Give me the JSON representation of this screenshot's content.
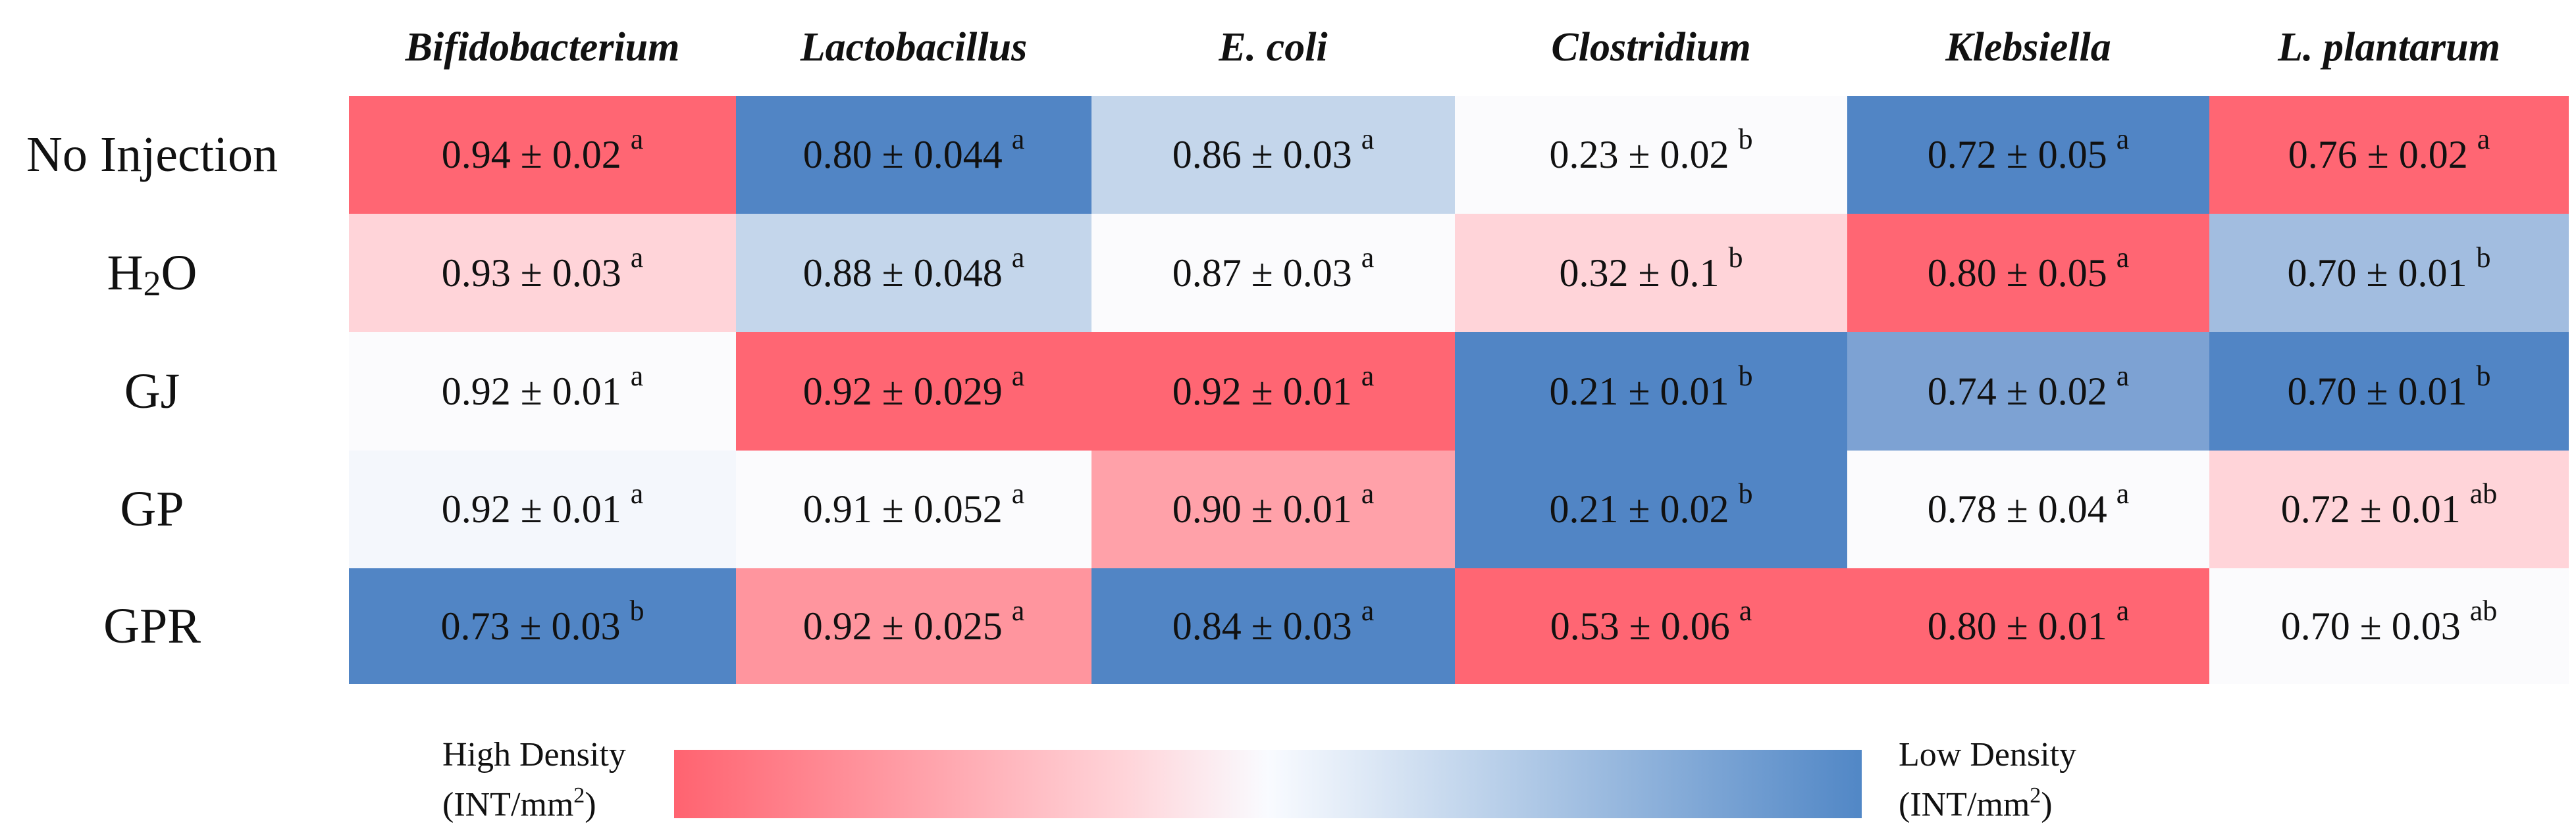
{
  "chart_data": {
    "type": "heatmap",
    "columns": [
      "Bifidobacterium",
      "Lactobacillus",
      "E. coli",
      "Clostridium",
      "Klebsiella",
      "L. plantarum"
    ],
    "rows": [
      {
        "label": "No Injection",
        "label_main": "No Injection",
        "label_sub": "",
        "label_tail": ""
      },
      {
        "label": "H2O",
        "label_main": "H",
        "label_sub": "2",
        "label_tail": "O"
      },
      {
        "label": "GJ",
        "label_main": "GJ",
        "label_sub": "",
        "label_tail": ""
      },
      {
        "label": "GP",
        "label_main": "GP",
        "label_sub": "",
        "label_tail": ""
      },
      {
        "label": "GPR",
        "label_main": "GPR",
        "label_sub": "",
        "label_tail": ""
      }
    ],
    "cells": [
      [
        {
          "text": "0.94 ± 0.02",
          "sig": "a",
          "mean": 0.94,
          "sd": 0.02,
          "color": "#ff6673"
        },
        {
          "text": "0.80 ± 0.044",
          "sig": "a",
          "mean": 0.8,
          "sd": 0.044,
          "color": "#5185c5"
        },
        {
          "text": "0.86 ± 0.03",
          "sig": "a",
          "mean": 0.86,
          "sd": 0.03,
          "color": "#c4d6eb"
        },
        {
          "text": "0.23 ± 0.02",
          "sig": "b",
          "mean": 0.23,
          "sd": 0.02,
          "color": "#fbfbfd"
        },
        {
          "text": "0.72 ± 0.05",
          "sig": "a",
          "mean": 0.72,
          "sd": 0.05,
          "color": "#5185c5"
        },
        {
          "text": "0.76 ± 0.02",
          "sig": "a",
          "mean": 0.76,
          "sd": 0.02,
          "color": "#ff6673"
        }
      ],
      [
        {
          "text": "0.93 ± 0.03",
          "sig": "a",
          "mean": 0.93,
          "sd": 0.03,
          "color": "#ffd4d9"
        },
        {
          "text": "0.88 ± 0.048",
          "sig": "a",
          "mean": 0.88,
          "sd": 0.048,
          "color": "#c4d6eb"
        },
        {
          "text": "0.87 ± 0.03",
          "sig": "a",
          "mean": 0.87,
          "sd": 0.03,
          "color": "#fbfbfd"
        },
        {
          "text": "0.32 ± 0.1",
          "sig": "b",
          "mean": 0.32,
          "sd": 0.1,
          "color": "#ffd4d9"
        },
        {
          "text": "0.80 ± 0.05",
          "sig": "a",
          "mean": 0.8,
          "sd": 0.05,
          "color": "#ff6673"
        },
        {
          "text": "0.70 ± 0.01",
          "sig": "b",
          "mean": 0.7,
          "sd": 0.01,
          "color": "#a2bde0"
        }
      ],
      [
        {
          "text": "0.92 ± 0.01",
          "sig": "a",
          "mean": 0.92,
          "sd": 0.01,
          "color": "#fbfbfd"
        },
        {
          "text": "0.92 ± 0.029",
          "sig": "a",
          "mean": 0.92,
          "sd": 0.029,
          "color": "#ff6673"
        },
        {
          "text": "0.92 ± 0.01",
          "sig": "a",
          "mean": 0.92,
          "sd": 0.01,
          "color": "#ff6673"
        },
        {
          "text": "0.21 ± 0.01",
          "sig": "b",
          "mean": 0.21,
          "sd": 0.01,
          "color": "#5185c5"
        },
        {
          "text": "0.74 ± 0.02",
          "sig": "a",
          "mean": 0.74,
          "sd": 0.02,
          "color": "#7da2d3"
        },
        {
          "text": "0.70 ± 0.01",
          "sig": "b",
          "mean": 0.7,
          "sd": 0.01,
          "color": "#5185c5"
        }
      ],
      [
        {
          "text": "0.92 ± 0.01",
          "sig": "a",
          "mean": 0.92,
          "sd": 0.01,
          "color": "#f4f7fc"
        },
        {
          "text": "0.91 ± 0.052",
          "sig": "a",
          "mean": 0.91,
          "sd": 0.052,
          "color": "#fbfbfd"
        },
        {
          "text": "0.90 ± 0.01",
          "sig": "a",
          "mean": 0.9,
          "sd": 0.01,
          "color": "#ffa1a9"
        },
        {
          "text": "0.21 ± 0.02",
          "sig": "b",
          "mean": 0.21,
          "sd": 0.02,
          "color": "#5185c5"
        },
        {
          "text": "0.78 ± 0.04",
          "sig": "a",
          "mean": 0.78,
          "sd": 0.04,
          "color": "#fbfbfd"
        },
        {
          "text": "0.72 ± 0.01",
          "sig": "ab",
          "mean": 0.72,
          "sd": 0.01,
          "color": "#ffd4d9"
        }
      ],
      [
        {
          "text": "0.73 ± 0.03",
          "sig": "b",
          "mean": 0.73,
          "sd": 0.03,
          "color": "#5185c5"
        },
        {
          "text": "0.92 ± 0.025",
          "sig": "a",
          "mean": 0.92,
          "sd": 0.025,
          "color": "#ff959e"
        },
        {
          "text": "0.84 ± 0.03",
          "sig": "a",
          "mean": 0.84,
          "sd": 0.03,
          "color": "#5185c5"
        },
        {
          "text": "0.53 ± 0.06",
          "sig": "a",
          "mean": 0.53,
          "sd": 0.06,
          "color": "#ff6673"
        },
        {
          "text": "0.80 ± 0.01",
          "sig": "a",
          "mean": 0.8,
          "sd": 0.01,
          "color": "#ff6673"
        },
        {
          "text": "0.70 ± 0.03",
          "sig": "ab",
          "mean": 0.7,
          "sd": 0.03,
          "color": "#fbfbfd"
        }
      ]
    ],
    "legend": {
      "high_label": "High Density",
      "high_unit": "(INT/mm",
      "low_label": "Low Density",
      "low_unit": "(INT/mm",
      "unit_sup": "2",
      "unit_close": ")",
      "color_high": "#ff6370",
      "color_mid": "#f9fbff",
      "color_low": "#5187c6"
    }
  }
}
